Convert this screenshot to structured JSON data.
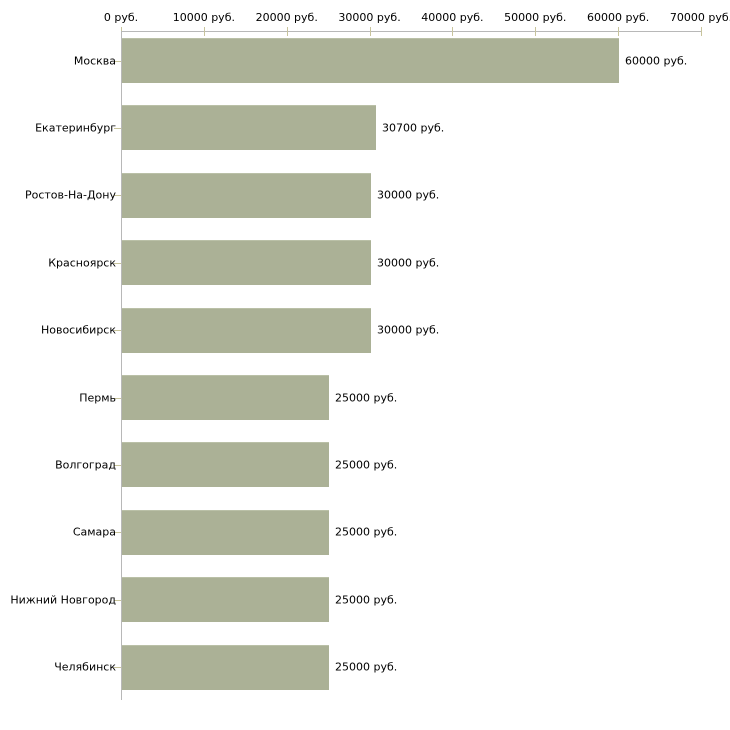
{
  "chart_data": {
    "type": "bar",
    "orientation": "horizontal",
    "title": "",
    "unit": "руб.",
    "categories": [
      "Москва",
      "Екатеринбург",
      "Ростов-На-Дону",
      "Красноярск",
      "Новосибирск",
      "Пермь",
      "Волгоград",
      "Самара",
      "Нижний Новгород",
      "Челябинск"
    ],
    "values": [
      60000,
      30700,
      30000,
      30000,
      30000,
      25000,
      25000,
      25000,
      25000,
      25000
    ],
    "value_labels": [
      "60000 руб.",
      "30700 руб.",
      "30000 руб.",
      "30000 руб.",
      "30000 руб.",
      "25000 руб.",
      "25000 руб.",
      "25000 руб.",
      "25000 руб.",
      "25000 руб."
    ],
    "x_axis": {
      "position": "top",
      "min": 0,
      "max": 70000,
      "tick_interval": 10000,
      "tick_labels": [
        "0 руб.",
        "10000 руб.",
        "20000 руб.",
        "30000 руб.",
        "40000 руб.",
        "50000 руб.",
        "60000 руб.",
        "70000 руб."
      ]
    },
    "grid": false,
    "legend": null,
    "colors": {
      "bar_fill": "#abb196",
      "bar_top_edge": "#bac0a7",
      "axis_line": "#b8b8b8",
      "tick_mark": "#c8c49c",
      "text": "#000000",
      "background": "#ffffff"
    }
  }
}
